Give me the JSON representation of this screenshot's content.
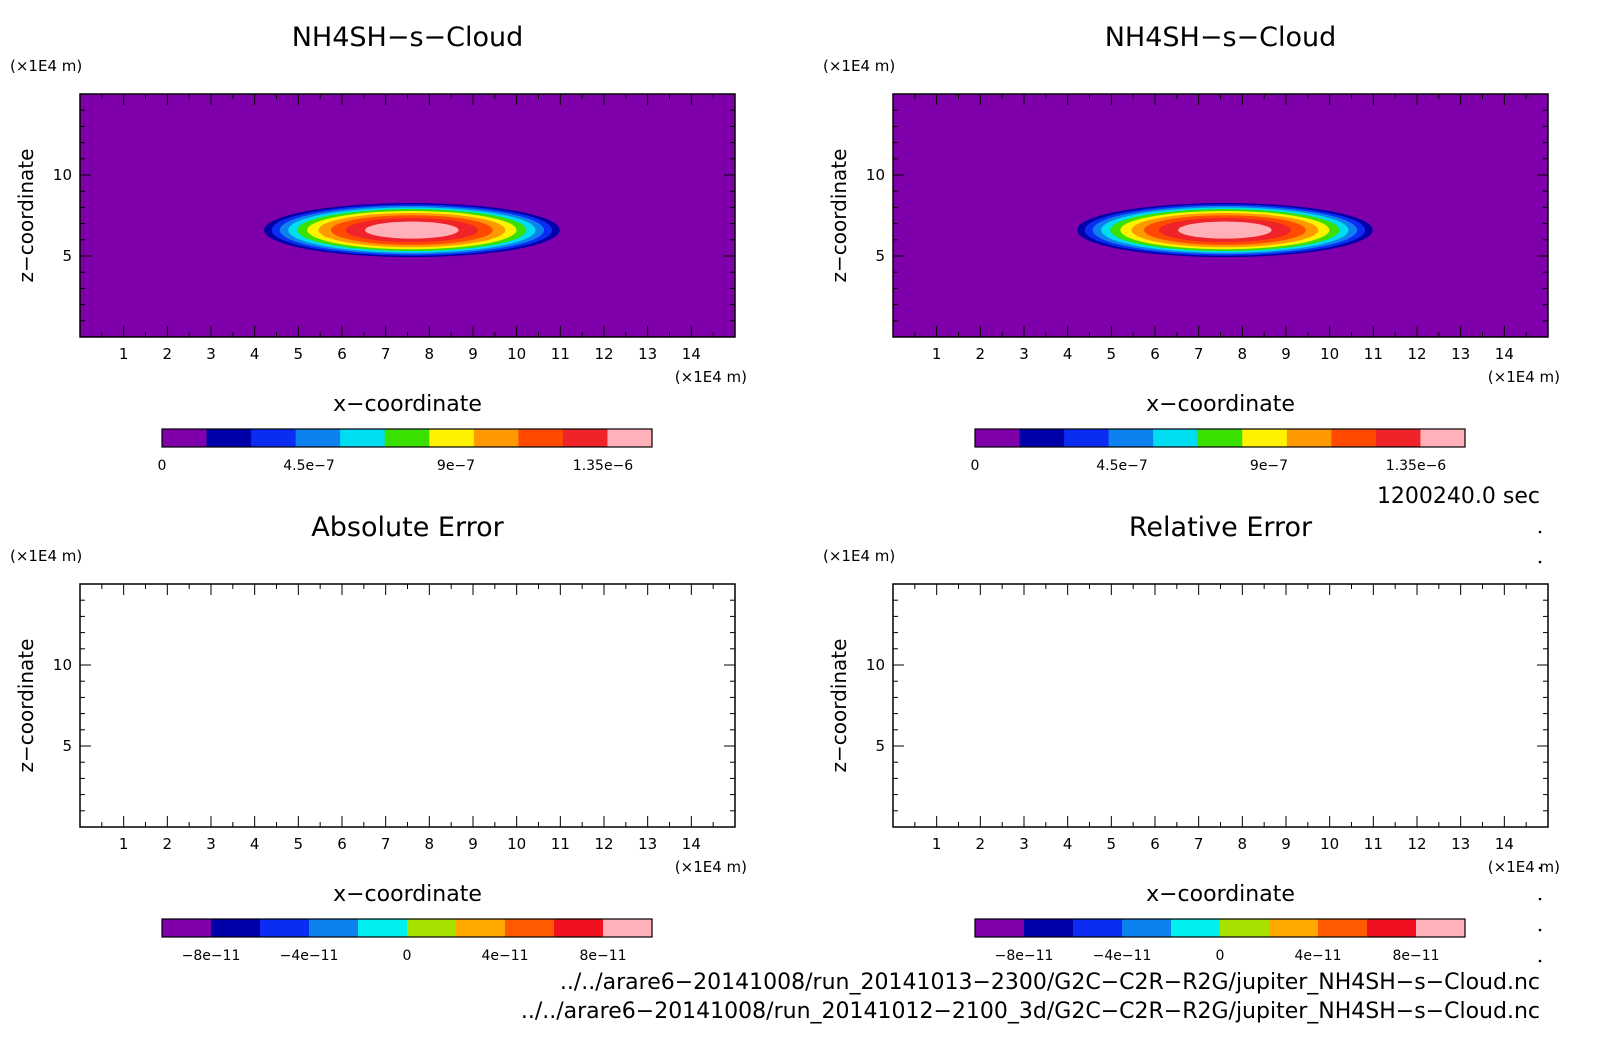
{
  "chart_data": [
    {
      "type": "heatmap",
      "title": "NH4SH−s−Cloud",
      "xlabel": "x−coordinate",
      "ylabel": "z−coordinate",
      "x_unit": "(×1E4 m)",
      "y_unit": "(×1E4 m)",
      "xlim": [
        0,
        15
      ],
      "ylim": [
        0,
        15
      ],
      "x_ticks": [
        "1",
        "2",
        "3",
        "4",
        "5",
        "6",
        "7",
        "8",
        "9",
        "10",
        "11",
        "12",
        "13",
        "14"
      ],
      "y_ticks": [
        "5",
        "10"
      ],
      "field": {
        "center_x": 7.6,
        "center_z": 6.6,
        "half_width_x": 3.55,
        "half_height_z": 1.75,
        "peak": 1.5e-06
      },
      "colorbar": {
        "min": 0,
        "max": 1.5e-06,
        "levels": 11,
        "colors": [
          "#7f00aa",
          "#0000a8",
          "#0b2cf2",
          "#0d82ee",
          "#00dcf0",
          "#3ae000",
          "#fff200",
          "#ff9900",
          "#ff4a00",
          "#f0232a",
          "#ffb0b8"
        ],
        "labels": [
          "0",
          "4.5e−7",
          "9e−7",
          "1.35e−6"
        ],
        "label_values": [
          0,
          4.5e-07,
          9e-07,
          1.35e-06
        ]
      }
    },
    {
      "type": "heatmap",
      "title": "NH4SH−s−Cloud",
      "xlabel": "x−coordinate",
      "ylabel": "z−coordinate",
      "x_unit": "(×1E4 m)",
      "y_unit": "(×1E4 m)",
      "xlim": [
        0,
        15
      ],
      "ylim": [
        0,
        15
      ],
      "x_ticks": [
        "1",
        "2",
        "3",
        "4",
        "5",
        "6",
        "7",
        "8",
        "9",
        "10",
        "11",
        "12",
        "13",
        "14"
      ],
      "y_ticks": [
        "5",
        "10"
      ],
      "field": {
        "center_x": 7.6,
        "center_z": 6.6,
        "half_width_x": 3.55,
        "half_height_z": 1.75,
        "peak": 1.5e-06
      },
      "colorbar": {
        "min": 0,
        "max": 1.5e-06,
        "levels": 11,
        "colors": [
          "#7f00aa",
          "#0000a8",
          "#0b2cf2",
          "#0d82ee",
          "#00dcf0",
          "#3ae000",
          "#fff200",
          "#ff9900",
          "#ff4a00",
          "#f0232a",
          "#ffb0b8"
        ],
        "labels": [
          "0",
          "4.5e−7",
          "9e−7",
          "1.35e−6"
        ],
        "label_values": [
          0,
          4.5e-07,
          9e-07,
          1.35e-06
        ]
      }
    },
    {
      "type": "heatmap",
      "title": "Absolute Error",
      "xlabel": "x−coordinate",
      "ylabel": "z−coordinate",
      "x_unit": "(×1E4 m)",
      "y_unit": "(×1E4 m)",
      "xlim": [
        0,
        15
      ],
      "ylim": [
        0,
        15
      ],
      "x_ticks": [
        "1",
        "2",
        "3",
        "4",
        "5",
        "6",
        "7",
        "8",
        "9",
        "10",
        "11",
        "12",
        "13",
        "14"
      ],
      "y_ticks": [
        "5",
        "10"
      ],
      "field": null,
      "colorbar": {
        "min": -1e-10,
        "max": 1e-10,
        "levels": 10,
        "colors": [
          "#7f00aa",
          "#0000a8",
          "#0b2cf2",
          "#0d82ee",
          "#00f0f0",
          "#a8e000",
          "#ffa800",
          "#ff5a00",
          "#f01020",
          "#ffb0b8"
        ],
        "labels": [
          "−8e−11",
          "−4e−11",
          "0",
          "4e−11",
          "8e−11"
        ],
        "label_values": [
          -8e-11,
          -4e-11,
          0,
          4e-11,
          8e-11
        ]
      }
    },
    {
      "type": "heatmap",
      "title": "Relative Error",
      "xlabel": "x−coordinate",
      "ylabel": "z−coordinate",
      "x_unit": "(×1E4 m)",
      "y_unit": "(×1E4 m)",
      "xlim": [
        0,
        15
      ],
      "ylim": [
        0,
        15
      ],
      "x_ticks": [
        "1",
        "2",
        "3",
        "4",
        "5",
        "6",
        "7",
        "8",
        "9",
        "10",
        "11",
        "12",
        "13",
        "14"
      ],
      "y_ticks": [
        "5",
        "10"
      ],
      "field": null,
      "colorbar": {
        "min": -1e-10,
        "max": 1e-10,
        "levels": 10,
        "colors": [
          "#7f00aa",
          "#0000a8",
          "#0b2cf2",
          "#0d82ee",
          "#00f0f0",
          "#a8e000",
          "#ffa800",
          "#ff5a00",
          "#f01020",
          "#ffb0b8"
        ],
        "labels": [
          "−8e−11",
          "−4e−11",
          "0",
          "4e−11",
          "8e−11"
        ],
        "label_values": [
          -8e-11,
          -4e-11,
          0,
          4e-11,
          8e-11
        ]
      }
    }
  ],
  "time_label": "1200240.0 sec",
  "file_paths": [
    "../../arare6−20141008/run_20141013−2300/G2C−C2R−R2G/jupiter_NH4SH−s−Cloud.nc",
    "../../arare6−20141008/run_20141012−2100_3d/G2C−C2R−R2G/jupiter_NH4SH−s−Cloud.nc"
  ]
}
